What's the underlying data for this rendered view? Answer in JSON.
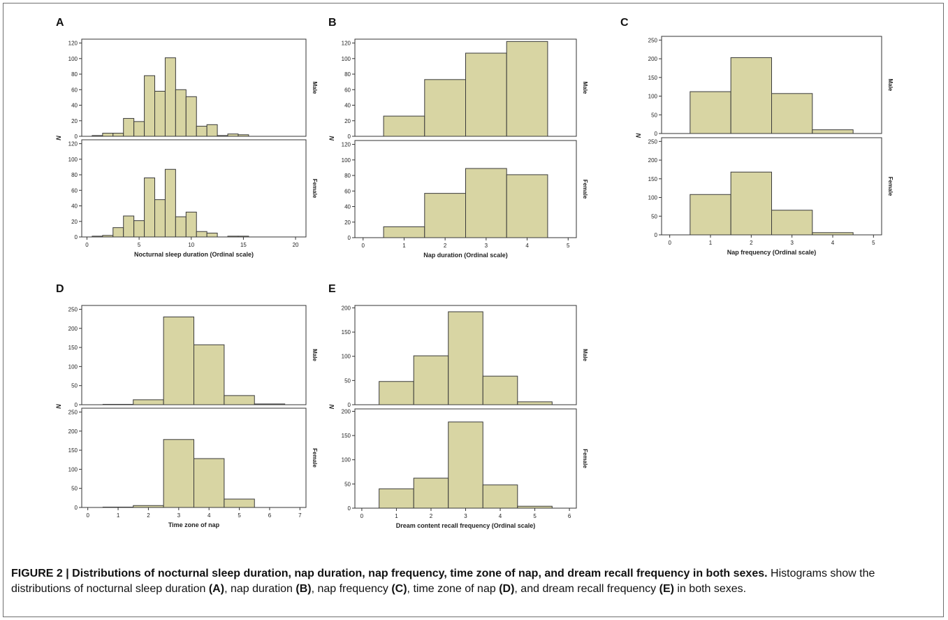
{
  "caption": {
    "title": "FIGURE 2 | Distributions of nocturnal sleep duration, nap duration, nap frequency, time zone of nap, and dream recall frequency in both sexes.",
    "parts": [
      {
        "text": "Histograms show the distributions of nocturnal sleep duration ",
        "bold": false
      },
      {
        "text": "(A)",
        "bold": true
      },
      {
        "text": ", nap duration ",
        "bold": false
      },
      {
        "text": "(B)",
        "bold": true
      },
      {
        "text": ", nap frequency ",
        "bold": false
      },
      {
        "text": "(C)",
        "bold": true
      },
      {
        "text": ", time zone of nap ",
        "bold": false
      },
      {
        "text": "(D)",
        "bold": true
      },
      {
        "text": ", and dream recall frequency ",
        "bold": false
      },
      {
        "text": "(E)",
        "bold": true
      },
      {
        "text": " in both sexes.",
        "bold": false
      }
    ]
  },
  "colors": {
    "bar_fill": "#d8d5a3",
    "bar_stroke": "#3a3a3a",
    "axis": "#333333",
    "background": "#ffffff"
  },
  "chart_data": [
    {
      "panel": "A",
      "type": "bar",
      "xlabel": "Nocturnal sleep duration (Ordinal scale)",
      "ylabel": "N",
      "xlim": [
        -0.5,
        21
      ],
      "xticks": [
        0,
        5,
        10,
        15,
        20
      ],
      "bin_width": 1,
      "facets": [
        {
          "name": "Male",
          "ylim": [
            0,
            125
          ],
          "yticks": [
            0,
            20,
            40,
            60,
            80,
            100,
            120
          ],
          "x": [
            1,
            2,
            3,
            4,
            5,
            6,
            7,
            8,
            9,
            10,
            11,
            12,
            13,
            14,
            15
          ],
          "values": [
            1,
            4,
            4,
            23,
            19,
            78,
            58,
            101,
            60,
            51,
            13,
            15,
            1,
            3,
            2
          ]
        },
        {
          "name": "Female",
          "ylim": [
            0,
            125
          ],
          "yticks": [
            0,
            20,
            40,
            60,
            80,
            100,
            120
          ],
          "x": [
            1,
            2,
            3,
            4,
            5,
            6,
            7,
            8,
            9,
            10,
            11,
            12,
            13,
            14,
            15
          ],
          "values": [
            1,
            2,
            12,
            27,
            21,
            76,
            48,
            87,
            26,
            32,
            7,
            5,
            0,
            1,
            1
          ]
        }
      ]
    },
    {
      "panel": "B",
      "type": "bar",
      "xlabel": "Nap duration (Ordinal scale)",
      "ylabel": "N",
      "xlim": [
        -0.2,
        5.2
      ],
      "xticks": [
        0,
        1,
        2,
        3,
        4,
        5
      ],
      "bin_width": 1,
      "facets": [
        {
          "name": "Male",
          "ylim": [
            0,
            125
          ],
          "yticks": [
            0,
            20,
            40,
            60,
            80,
            100,
            120
          ],
          "x": [
            1,
            2,
            3,
            4
          ],
          "values": [
            26,
            73,
            107,
            122
          ]
        },
        {
          "name": "Female",
          "ylim": [
            0,
            125
          ],
          "yticks": [
            0,
            20,
            40,
            60,
            80,
            100,
            120
          ],
          "x": [
            1,
            2,
            3,
            4
          ],
          "values": [
            14,
            57,
            89,
            81
          ]
        }
      ]
    },
    {
      "panel": "C",
      "type": "bar",
      "xlabel": "Nap frequency (Ordinal scale)",
      "ylabel": "N",
      "xlim": [
        -0.2,
        5.2
      ],
      "xticks": [
        0,
        1,
        2,
        3,
        4,
        5
      ],
      "bin_width": 1,
      "facets": [
        {
          "name": "Male",
          "ylim": [
            0,
            260
          ],
          "yticks": [
            0,
            50,
            100,
            150,
            200,
            250
          ],
          "x": [
            1,
            2,
            3,
            4
          ],
          "values": [
            112,
            203,
            107,
            10
          ]
        },
        {
          "name": "Female",
          "ylim": [
            0,
            260
          ],
          "yticks": [
            0,
            50,
            100,
            150,
            200,
            250
          ],
          "x": [
            1,
            2,
            3,
            4
          ],
          "values": [
            108,
            168,
            66,
            6
          ]
        }
      ]
    },
    {
      "panel": "D",
      "type": "bar",
      "xlabel": "Time zone of nap",
      "ylabel": "N",
      "xlim": [
        -0.2,
        7.2
      ],
      "xticks": [
        0,
        1,
        2,
        3,
        4,
        5,
        6,
        7
      ],
      "bin_width": 1,
      "facets": [
        {
          "name": "Male",
          "ylim": [
            0,
            260
          ],
          "yticks": [
            0,
            50,
            100,
            150,
            200,
            250
          ],
          "x": [
            1,
            2,
            3,
            4,
            5,
            6
          ],
          "values": [
            1,
            13,
            230,
            157,
            24,
            2
          ]
        },
        {
          "name": "Female",
          "ylim": [
            0,
            260
          ],
          "yticks": [
            0,
            50,
            100,
            150,
            200,
            250
          ],
          "x": [
            1,
            2,
            3,
            4,
            5,
            6
          ],
          "values": [
            1,
            5,
            178,
            128,
            22,
            0
          ]
        }
      ]
    },
    {
      "panel": "E",
      "type": "bar",
      "xlabel": "Dream content recall frequency (Ordinal scale)",
      "ylabel": "N",
      "xlim": [
        -0.2,
        6.2
      ],
      "xticks": [
        0,
        1,
        2,
        3,
        4,
        5,
        6
      ],
      "bin_width": 1,
      "facets": [
        {
          "name": "Male",
          "ylim": [
            0,
            205
          ],
          "yticks": [
            0,
            50,
            100,
            150,
            200
          ],
          "x": [
            1,
            2,
            3,
            4,
            5
          ],
          "values": [
            48,
            101,
            192,
            59,
            6
          ]
        },
        {
          "name": "Female",
          "ylim": [
            0,
            205
          ],
          "yticks": [
            0,
            50,
            100,
            150,
            200
          ],
          "x": [
            1,
            2,
            3,
            4,
            5
          ],
          "values": [
            40,
            62,
            178,
            48,
            4
          ]
        }
      ]
    }
  ]
}
